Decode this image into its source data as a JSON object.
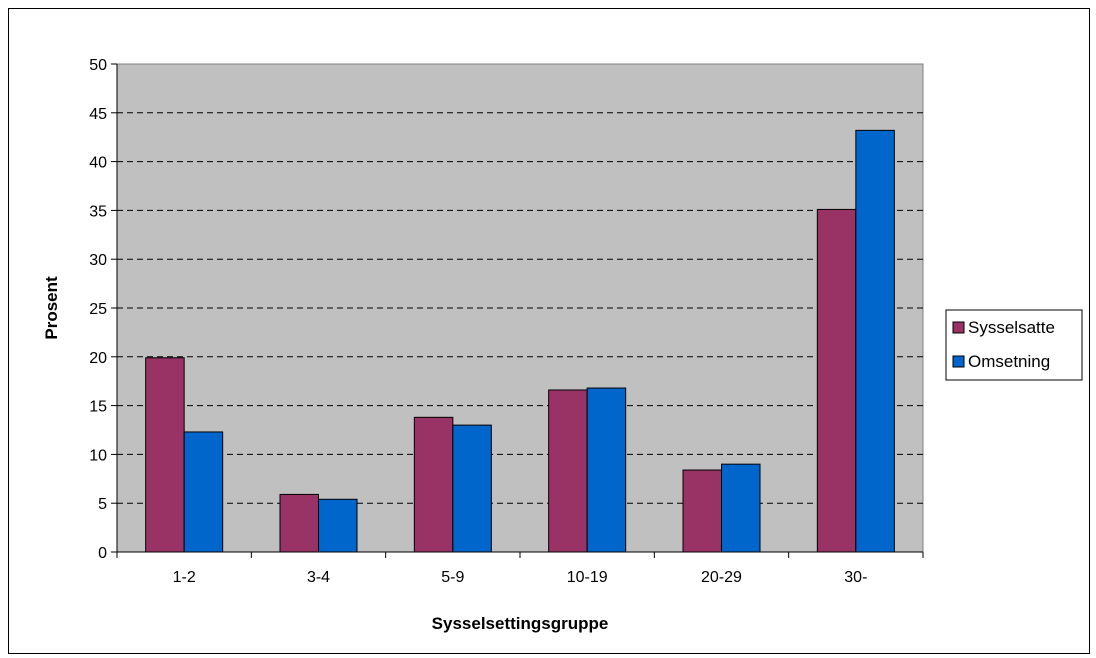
{
  "chart_data": {
    "type": "bar",
    "title": "",
    "xlabel": "Sysselsettingsgruppe",
    "ylabel": "Prosent",
    "categories": [
      "1-2",
      "3-4",
      "5-9",
      "10-19",
      "20-29",
      "30-"
    ],
    "series": [
      {
        "name": "Sysselsatte",
        "values": [
          19.9,
          5.9,
          13.8,
          16.6,
          8.4,
          35.1
        ],
        "color": "#993366"
      },
      {
        "name": "Omsetning",
        "values": [
          12.3,
          5.4,
          13.0,
          16.8,
          9.0,
          43.2
        ],
        "color": "#0066CC"
      }
    ],
    "ylim": [
      0,
      50
    ],
    "ystep": 5,
    "yticks": [
      "0",
      "5",
      "10",
      "15",
      "20",
      "25",
      "30",
      "35",
      "40",
      "45",
      "50"
    ],
    "grid": true,
    "grid_style": "dashed",
    "plot_background": "#C0C0C0",
    "legend_position": "right"
  }
}
